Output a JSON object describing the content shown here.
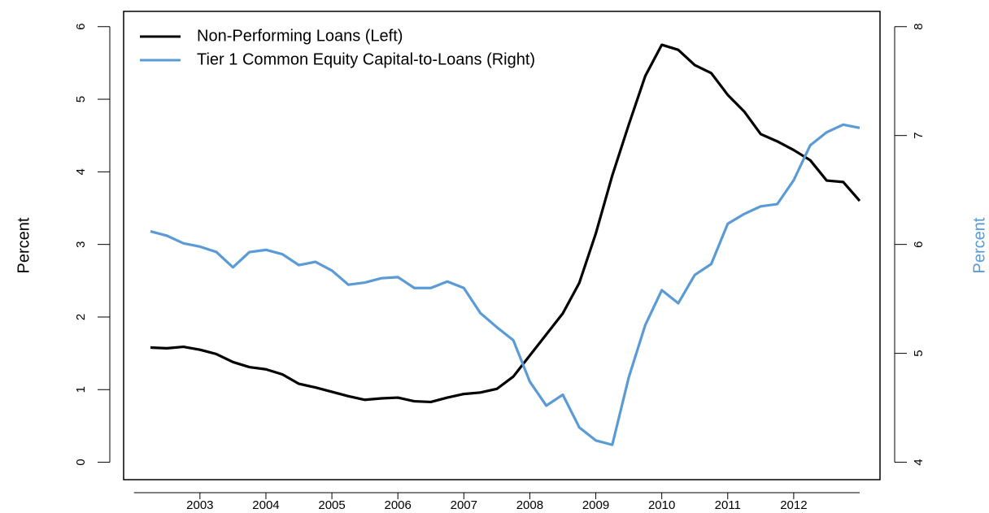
{
  "chart_data": {
    "type": "line",
    "categories": [
      null,
      null,
      null,
      "2003",
      null,
      null,
      null,
      "2004",
      null,
      null,
      null,
      "2005",
      null,
      null,
      null,
      "2006",
      null,
      null,
      null,
      "2007",
      null,
      null,
      null,
      "2008",
      null,
      null,
      null,
      "2009",
      null,
      null,
      null,
      "2010",
      null,
      null,
      null,
      "2011",
      null,
      null,
      null,
      "2012",
      null,
      null,
      null,
      null
    ],
    "series": [
      {
        "name": "Non-Performing Loans (Left)",
        "color": "#000000",
        "values": [
          1.58,
          1.57,
          1.59,
          1.55,
          1.49,
          1.38,
          1.31,
          1.28,
          1.21,
          1.08,
          1.03,
          0.97,
          0.91,
          0.86,
          0.88,
          0.89,
          0.84,
          0.83,
          0.89,
          0.94,
          0.96,
          1.01,
          1.18,
          1.47,
          1.76,
          2.05,
          2.47,
          3.15,
          3.95,
          4.65,
          5.32,
          5.75,
          5.68,
          5.47,
          5.36,
          5.06,
          4.83,
          4.52,
          4.42,
          4.3,
          4.16,
          3.88,
          3.86,
          3.6
        ]
      },
      {
        "name": "Tier 1 Common Equity Capital-to-Loans (Right)",
        "color": "#5b9bd5",
        "axis": "y2",
        "values": [
          6.12,
          6.08,
          6.01,
          5.98,
          5.93,
          5.79,
          5.93,
          5.95,
          5.91,
          5.81,
          5.84,
          5.76,
          5.63,
          5.65,
          5.69,
          5.7,
          5.6,
          5.6,
          5.66,
          5.6,
          5.37,
          5.24,
          5.12,
          4.74,
          4.52,
          4.62,
          4.32,
          4.2,
          4.16,
          4.78,
          5.26,
          5.58,
          5.46,
          5.72,
          5.82,
          6.19,
          6.28,
          6.35,
          6.37,
          6.59,
          6.91,
          7.03,
          7.1,
          7.07
        ]
      }
    ],
    "y_label": "Percent",
    "y2_label": "Percent",
    "ylim": [
      -0.24,
      6.21
    ],
    "yticks": [
      0,
      1,
      2,
      3,
      4,
      5,
      6
    ],
    "y2lim": [
      3.84,
      8.14
    ],
    "y2ticks": [
      4,
      5,
      6,
      7,
      8
    ],
    "legend": "top-left"
  }
}
